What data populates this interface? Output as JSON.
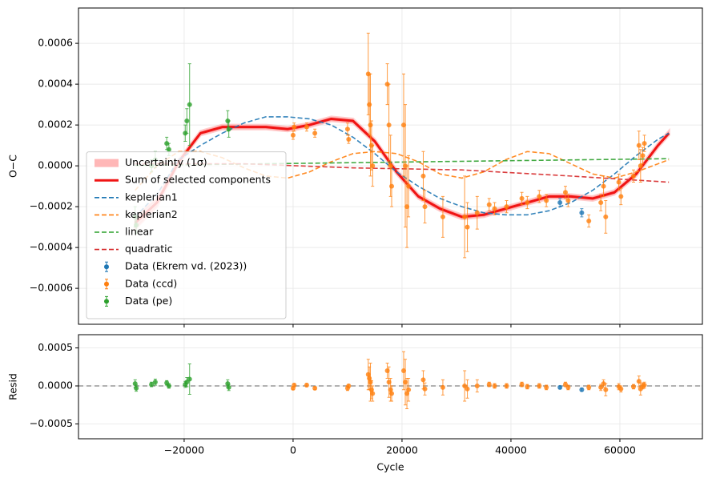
{
  "chart_data": [
    {
      "type": "errorbar",
      "ylabel": "O−C",
      "xlim": [
        -39400,
        75150
      ],
      "ylim": [
        -0.000776,
        0.000773
      ],
      "yticks": [
        {
          "value": -0.0006,
          "label": "−0.0006"
        },
        {
          "value": -0.0004,
          "label": "−0.0004"
        },
        {
          "value": -0.0002,
          "label": "−0.0002"
        },
        {
          "value": 0,
          "label": "0.0000"
        },
        0.0002,
        0.0004,
        0.0006
      ],
      "grid": true,
      "legend": "lower left",
      "series": [
        {
          "name": "Uncertainty (1σ)",
          "kind": "band",
          "color": "#ff9999",
          "x": [
            -29000,
            -25000,
            -21000,
            -17000,
            -13000,
            -9000,
            -5000,
            -1000,
            3000,
            7000,
            11000,
            15000,
            19000,
            23000,
            27000,
            31000,
            35000,
            39000,
            43000,
            47000,
            51000,
            55000,
            59000,
            63000,
            67000,
            69000
          ],
          "lower": [
            -0.00031,
            -0.0002,
            1e-05,
            0.00015,
            0.00018,
            0.00018,
            0.00018,
            0.00017,
            0.00019,
            0.00022,
            0.00021,
            0.00011,
            -4e-05,
            -0.00016,
            -0.00022,
            -0.00026,
            -0.00025,
            -0.00022,
            -0.00019,
            -0.00016,
            -0.00016,
            -0.00017,
            -0.00014,
            -5e-05,
            9e-05,
            0.00015
          ],
          "upper": [
            -0.00025,
            -0.00016,
            3e-05,
            0.00017,
            0.0002,
            0.0002,
            0.0002,
            0.00019,
            0.00021,
            0.00024,
            0.00023,
            0.00013,
            -2e-05,
            -0.00014,
            -0.0002,
            -0.00024,
            -0.00023,
            -0.0002,
            -0.00017,
            -0.00014,
            -0.00014,
            -0.00015,
            -0.00012,
            -3e-05,
            0.00011,
            0.00017
          ]
        },
        {
          "name": "Sum of selected components",
          "kind": "line",
          "linestyle": "solid",
          "color": "#f01414",
          "x": [
            -29000,
            -25000,
            -21000,
            -17000,
            -13000,
            -9000,
            -5000,
            -1000,
            3000,
            7000,
            11000,
            15000,
            19000,
            23000,
            27000,
            31000,
            35000,
            39000,
            43000,
            47000,
            51000,
            55000,
            59000,
            63000,
            67000,
            69000
          ],
          "values": [
            -0.00028,
            -0.00018,
            2e-05,
            0.00016,
            0.00019,
            0.00019,
            0.00019,
            0.00018,
            0.0002,
            0.00023,
            0.00022,
            0.00012,
            -3e-05,
            -0.00015,
            -0.00021,
            -0.00025,
            -0.00024,
            -0.00021,
            -0.00018,
            -0.00015,
            -0.00015,
            -0.00016,
            -0.00013,
            -4e-05,
            0.0001,
            0.00016
          ]
        },
        {
          "name": "keplerian1",
          "kind": "line",
          "linestyle": "dashed",
          "color": "#1f77b4",
          "x": [
            -29000,
            -25000,
            -21000,
            -17000,
            -13000,
            -9000,
            -5000,
            -1000,
            3000,
            7000,
            11000,
            15000,
            19000,
            23000,
            27000,
            31000,
            35000,
            39000,
            43000,
            47000,
            51000,
            55000,
            59000,
            63000,
            67000,
            69000
          ],
          "values": [
            -0.00025,
            -0.00014,
            3e-05,
            0.0001,
            0.00016,
            0.00021,
            0.00024,
            0.00024,
            0.00023,
            0.0002,
            0.00014,
            6e-05,
            -3e-05,
            -0.0001,
            -0.00016,
            -0.0002,
            -0.00023,
            -0.00024,
            -0.00024,
            -0.00022,
            -0.00018,
            -0.00012,
            -4e-05,
            5e-05,
            0.00013,
            0.00016
          ]
        },
        {
          "name": "keplerian2",
          "kind": "line",
          "linestyle": "dashed",
          "color": "#ff7f0e",
          "x": [
            -29000,
            -25000,
            -21000,
            -17000,
            -13000,
            -9000,
            -5000,
            -1000,
            3000,
            7000,
            11000,
            15000,
            19000,
            23000,
            27000,
            31000,
            35000,
            39000,
            43000,
            47000,
            51000,
            55000,
            59000,
            63000,
            67000,
            69000
          ],
          "values": [
            -0.00012,
            0,
            7e-05,
            7e-05,
            4e-05,
            -1e-05,
            -5e-05,
            -6e-05,
            -3e-05,
            2e-05,
            6e-05,
            7e-05,
            6e-05,
            2e-05,
            -4e-05,
            -6e-05,
            -3e-05,
            3e-05,
            7e-05,
            6e-05,
            1e-05,
            -4e-05,
            -6e-05,
            -3e-05,
            1e-05,
            3e-05
          ]
        },
        {
          "name": "linear",
          "kind": "line",
          "linestyle": "dashed",
          "color": "#2ca02c",
          "x": [
            -29000,
            69000
          ],
          "values": [
            2e-06,
            3.5e-05
          ]
        },
        {
          "name": "quadratic",
          "kind": "line",
          "linestyle": "dashed",
          "color": "#d62728",
          "x": [
            -29000,
            -9000,
            11000,
            31000,
            51000,
            69000
          ],
          "values": [
            1e-05,
            1e-05,
            -1e-05,
            -2e-05,
            -5e-05,
            -8e-05
          ]
        },
        {
          "name": "Data (Ekrem vd. (2023))",
          "kind": "errorbar",
          "color": "#1f77b4",
          "x": [
            49000,
            53000
          ],
          "values": [
            -0.00018,
            -0.00023
          ],
          "errors": [
            2e-05,
            2e-05
          ]
        },
        {
          "name": "Data (ccd)",
          "kind": "errorbar",
          "color": "#ff7f0e",
          "x": [
            0,
            200,
            2500,
            4000,
            10000,
            10200,
            13800,
            14000,
            14200,
            14400,
            14600,
            17300,
            17600,
            17900,
            18100,
            20300,
            20600,
            20900,
            21200,
            23900,
            24200,
            27500,
            31500,
            32000,
            33800,
            36000,
            37000,
            39200,
            42000,
            43000,
            45200,
            46500,
            50000,
            50500,
            54300,
            56500,
            57000,
            57400,
            59800,
            60200,
            62500,
            63500,
            63800,
            64200,
            64500
          ],
          "values": [
            0.00015,
            0.00019,
            0.00019,
            0.00016,
            0.00018,
            0.00013,
            0.00045,
            0.0003,
            0.0002,
            0.0001,
            0,
            0.0004,
            0.0002,
            0,
            -0.0001,
            0.0002,
            0,
            -0.0002,
            -0.0001,
            -5e-05,
            -0.0002,
            -0.00025,
            -0.00025,
            -0.0003,
            -0.00023,
            -0.00019,
            -0.00021,
            -0.0002,
            -0.00016,
            -0.00018,
            -0.00015,
            -0.00017,
            -0.00013,
            -0.00017,
            -0.00027,
            -0.00018,
            -0.0001,
            -0.00025,
            -8e-05,
            -0.00015,
            -5e-05,
            0.0001,
            0,
            5e-05,
            0.00011
          ],
          "errors": [
            2e-05,
            2e-05,
            2e-05,
            2e-05,
            3e-05,
            2e-05,
            0.0002,
            0.00015,
            0.00025,
            0.00012,
            0.0001,
            0.0001,
            0.0002,
            0.00015,
            0.0001,
            0.00025,
            0.0003,
            0.0002,
            0.00015,
            0.00012,
            8e-05,
            0.0001,
            0.0002,
            0.00012,
            8e-05,
            3e-05,
            3e-05,
            3e-05,
            3e-05,
            3e-05,
            3e-05,
            3e-05,
            3e-05,
            3e-05,
            3e-05,
            4e-05,
            5e-05,
            8e-05,
            4e-05,
            4e-05,
            3e-05,
            7e-05,
            8e-05,
            4e-05,
            4e-05
          ]
        },
        {
          "name": "Data (pe)",
          "kind": "errorbar",
          "color": "#2ca02c",
          "x": [
            -29000,
            -28800,
            -26000,
            -25300,
            -23200,
            -22800,
            -19800,
            -19500,
            -19000,
            -12000,
            -11800
          ],
          "values": [
            -0.00025,
            -0.00029,
            0,
            3e-05,
            0.00011,
            8e-05,
            0.00016,
            0.00022,
            0.0003,
            0.00022,
            0.00018
          ],
          "errors": [
            5e-05,
            4e-05,
            3e-05,
            4e-05,
            3e-05,
            3e-05,
            4e-05,
            6e-05,
            0.0002,
            5e-05,
            4e-05
          ]
        }
      ]
    },
    {
      "type": "errorbar",
      "xlabel": "Cycle",
      "ylabel": "Resid",
      "xlim": [
        -39400,
        75150
      ],
      "ylim": [
        -0.000695,
        0.000674
      ],
      "xticks": [
        {
          "value": -20000,
          "label": "−20000"
        },
        0,
        20000,
        40000,
        60000
      ],
      "yticks": [
        {
          "value": -0.0005,
          "label": "−0.0005"
        },
        {
          "value": 0,
          "label": "0.0000"
        },
        0.0005
      ],
      "grid": true,
      "reference_line": 0,
      "series": [
        {
          "color": "#1f77b4",
          "x": [
            49000,
            53000
          ],
          "values": [
            -2e-05,
            -5e-05
          ],
          "errors": [
            2e-05,
            2e-05
          ]
        },
        {
          "color": "#ff7f0e",
          "x": [
            0,
            200,
            2500,
            4000,
            10000,
            10200,
            13800,
            14000,
            14200,
            14400,
            14600,
            17300,
            17600,
            17900,
            18100,
            20300,
            20600,
            20900,
            21200,
            23900,
            24200,
            27500,
            31500,
            32000,
            33800,
            36000,
            37000,
            39200,
            42000,
            43000,
            45200,
            46500,
            50000,
            50500,
            54300,
            56500,
            57000,
            57400,
            59800,
            60200,
            62500,
            63500,
            63800,
            64200,
            64500
          ],
          "values": [
            -3e-05,
            1e-05,
            1e-05,
            -3e-05,
            -3e-05,
            0,
            0.00015,
            0.0001,
            5e-05,
            -5e-05,
            -0.0001,
            0.0002,
            5e-05,
            -5e-05,
            -0.0001,
            0.0002,
            5e-05,
            -0.0001,
            -5e-05,
            8e-05,
            -4e-05,
            -2e-05,
            0,
            -4e-05,
            0,
            2e-05,
            0,
            0,
            2e-05,
            -1e-05,
            0,
            -2e-05,
            2e-05,
            -2e-05,
            -2e-05,
            -2e-05,
            3e-05,
            -5e-05,
            -1e-05,
            -4e-05,
            -1e-05,
            6e-05,
            -4e-05,
            0,
            1e-05
          ],
          "errors": [
            2e-05,
            2e-05,
            2e-05,
            2e-05,
            3e-05,
            2e-05,
            0.0002,
            0.00015,
            0.00025,
            0.00012,
            0.0001,
            0.0001,
            0.0002,
            0.00015,
            0.0001,
            0.00025,
            0.0003,
            0.0002,
            0.00015,
            0.00012,
            8e-05,
            0.0001,
            0.0002,
            0.00012,
            8e-05,
            3e-05,
            3e-05,
            3e-05,
            3e-05,
            3e-05,
            3e-05,
            3e-05,
            3e-05,
            3e-05,
            3e-05,
            4e-05,
            5e-05,
            8e-05,
            4e-05,
            4e-05,
            3e-05,
            7e-05,
            8e-05,
            4e-05,
            4e-05
          ]
        },
        {
          "color": "#2ca02c",
          "x": [
            -29000,
            -28800,
            -26000,
            -25300,
            -23200,
            -22800,
            -19800,
            -19500,
            -19000,
            -12000,
            -11800
          ],
          "values": [
            3e-05,
            -3e-05,
            2e-05,
            5e-05,
            4e-05,
            0,
            2e-05,
            5e-05,
            9e-05,
            3e-05,
            -2e-05
          ],
          "errors": [
            5e-05,
            4e-05,
            3e-05,
            4e-05,
            3e-05,
            3e-05,
            4e-05,
            6e-05,
            0.0002,
            5e-05,
            4e-05
          ]
        }
      ]
    }
  ]
}
